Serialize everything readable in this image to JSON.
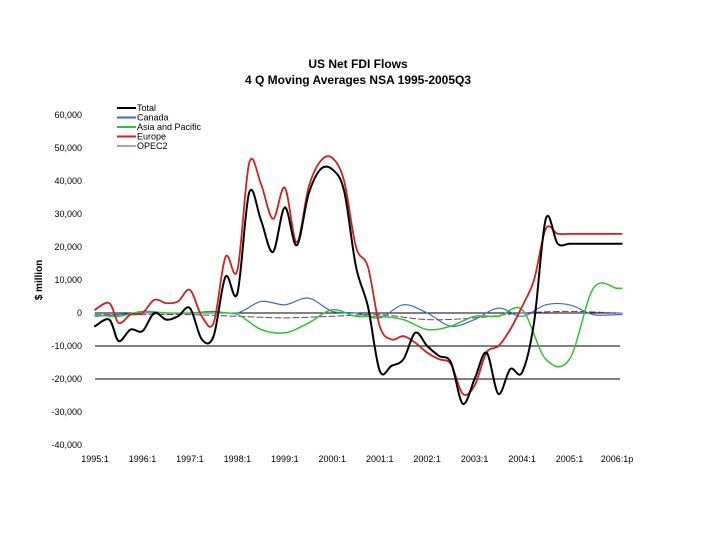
{
  "chart_data": {
    "type": "line",
    "title": "US Net FDI Flows",
    "subtitle": "4 Q Moving Averages NSA 1995-2005Q3",
    "xlabel": "",
    "ylabel": "$ million",
    "ylim": [
      -40000,
      60000
    ],
    "y_ticks": [
      60000,
      50000,
      40000,
      30000,
      20000,
      10000,
      0,
      -10000,
      -20000,
      -30000,
      -40000
    ],
    "y_tick_labels": [
      "60,000",
      "50,000",
      "40,000",
      "30,000",
      "20,000",
      "10,000",
      "0",
      "-10,000",
      "-20,000",
      "-30,000",
      "-40,000"
    ],
    "hlines": [
      0,
      -10000,
      -20000
    ],
    "x_range": [
      1995.0,
      2006.0
    ],
    "x_ticks": [
      1995.0,
      1996.0,
      1997.0,
      1998.0,
      1999.0,
      2000.0,
      2001.0,
      2002.0,
      2003.0,
      2004.0,
      2005.0,
      2006.0
    ],
    "x_tick_labels": [
      "1995:1",
      "1996:1",
      "1997:1",
      "1998:1",
      "1999:1",
      "2000:1",
      "2001:1",
      "2002:1",
      "2003:1",
      "2004:1",
      "2005:1",
      "2006:1p"
    ],
    "legend_position": "top-left",
    "series": [
      {
        "name": "Total",
        "color": "#000000",
        "width": 2,
        "x": [
          1995.0,
          1995.3,
          1995.5,
          1995.75,
          1996.0,
          1996.25,
          1996.5,
          1996.75,
          1997.0,
          1997.25,
          1997.5,
          1997.75,
          1998.0,
          1998.25,
          1998.5,
          1998.75,
          1999.0,
          1999.25,
          1999.5,
          1999.75,
          2000.0,
          2000.25,
          2000.5,
          2000.75,
          2001.0,
          2001.25,
          2001.5,
          2001.75,
          2002.0,
          2002.25,
          2002.5,
          2002.75,
          2003.0,
          2003.25,
          2003.5,
          2003.75,
          2004.0,
          2004.25,
          2004.5,
          2004.75,
          2005.0,
          2005.25,
          2005.5,
          2005.75,
          2006.0,
          2006.1
        ],
        "values": [
          -4000,
          -2000,
          -8500,
          -5000,
          -5500,
          0,
          -2000,
          -1000,
          1500,
          -8000,
          -7000,
          11000,
          6000,
          36500,
          28000,
          18500,
          32000,
          20500,
          36000,
          43500,
          43500,
          37000,
          14000,
          2000,
          -17500,
          -16000,
          -14000,
          -6000,
          -10000,
          -13000,
          -15000,
          -27500,
          -20000,
          -12000,
          -24500,
          -17000,
          -18000,
          -3000,
          28500,
          21000,
          21000,
          21000,
          21000,
          21000,
          21000,
          21000
        ]
      },
      {
        "name": "Canada",
        "color": "#3c6bc8",
        "width": 1.2,
        "x": [
          1995.0,
          1995.5,
          1996.0,
          1996.5,
          1997.0,
          1997.5,
          1998.0,
          1998.5,
          1999.0,
          1999.5,
          2000.0,
          2000.5,
          2001.0,
          2001.5,
          2002.0,
          2002.5,
          2003.0,
          2003.5,
          2004.0,
          2004.5,
          2005.0,
          2005.5,
          2006.0,
          2006.1
        ],
        "values": [
          -1000,
          -500,
          0,
          0,
          0,
          500,
          0,
          3500,
          2500,
          4500,
          500,
          0,
          -1500,
          2500,
          0,
          -4000,
          -2000,
          1500,
          -1000,
          2500,
          2500,
          -500,
          -500,
          -500
        ]
      },
      {
        "name": "Asia and Pacific",
        "color": "#33c233",
        "width": 1.5,
        "x": [
          1995.0,
          1995.5,
          1996.0,
          1996.5,
          1997.0,
          1997.5,
          1998.0,
          1998.5,
          1999.0,
          1999.5,
          2000.0,
          2000.5,
          2001.0,
          2001.5,
          2002.0,
          2002.5,
          2003.0,
          2003.5,
          2004.0,
          2004.5,
          2005.0,
          2005.5,
          2006.0,
          2006.1
        ],
        "values": [
          -500,
          -1000,
          500,
          0,
          0,
          0,
          -500,
          -5000,
          -6000,
          -3000,
          1000,
          -1000,
          -1000,
          -2000,
          -5000,
          -4000,
          -1000,
          -1000,
          1000,
          -14000,
          -14000,
          7500,
          7500,
          7500
        ]
      },
      {
        "name": "Europe",
        "color": "#cc2222",
        "width": 1.8,
        "x": [
          1995.0,
          1995.3,
          1995.5,
          1995.75,
          1996.0,
          1996.25,
          1996.5,
          1996.75,
          1997.0,
          1997.25,
          1997.5,
          1997.75,
          1998.0,
          1998.25,
          1998.5,
          1998.75,
          1999.0,
          1999.25,
          1999.5,
          1999.75,
          2000.0,
          2000.25,
          2000.5,
          2000.75,
          2001.0,
          2001.25,
          2001.5,
          2001.75,
          2002.0,
          2002.25,
          2002.5,
          2002.75,
          2003.0,
          2003.25,
          2003.5,
          2003.75,
          2004.0,
          2004.25,
          2004.5,
          2004.75,
          2005.0,
          2005.25,
          2005.5,
          2005.75,
          2006.0,
          2006.1
        ],
        "values": [
          1000,
          3000,
          -3000,
          -500,
          0,
          4000,
          3000,
          3500,
          7000,
          -1000,
          -3000,
          17000,
          13000,
          45500,
          39000,
          28500,
          38000,
          21500,
          38000,
          46000,
          47000,
          40000,
          20000,
          14000,
          -4000,
          -8000,
          -7000,
          -9000,
          -12000,
          -14000,
          -15500,
          -24500,
          -22000,
          -12000,
          -10000,
          -5000,
          2000,
          10000,
          25500,
          24000,
          24000,
          24000,
          24000,
          24000,
          24000,
          24000
        ]
      },
      {
        "name": "OPEC2",
        "color": "#7a3a7a",
        "width": 1,
        "x": [
          1995.0,
          1996.0,
          1997.0,
          1998.0,
          1999.0,
          2000.0,
          2001.0,
          2002.0,
          2003.0,
          2004.0,
          2005.0,
          2006.0,
          2006.1
        ],
        "values": [
          -500,
          -500,
          -500,
          -1000,
          -1500,
          -1000,
          -500,
          -2000,
          -1500,
          0,
          500,
          0,
          0
        ]
      }
    ]
  }
}
